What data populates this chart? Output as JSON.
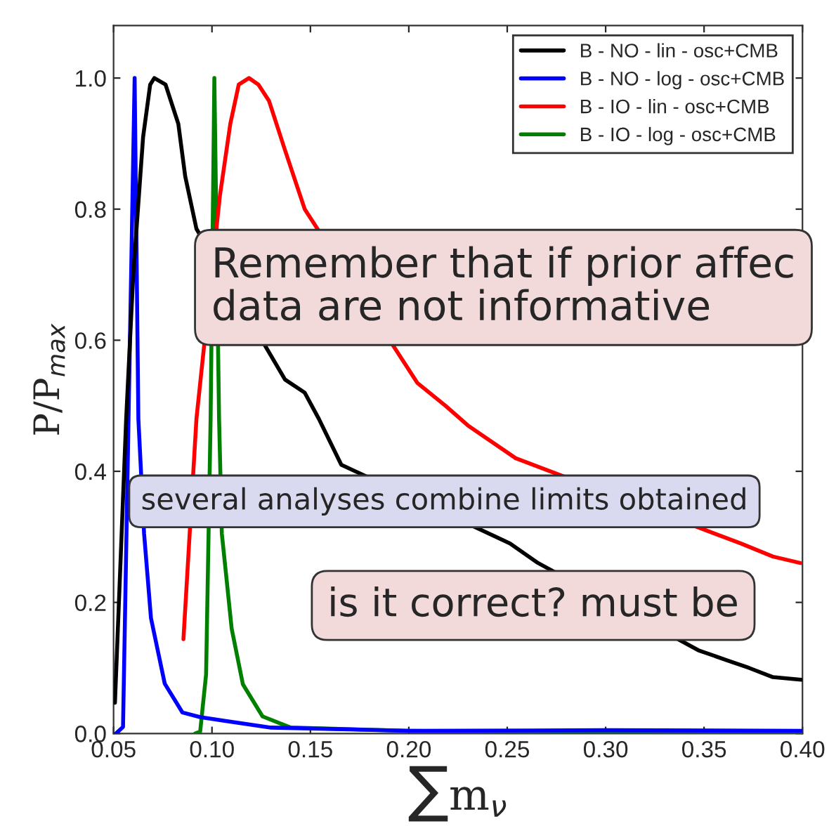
{
  "chart_data": {
    "type": "line",
    "xlabel": "∑m$_{ν}$",
    "ylabel": "P/P$_{max}$",
    "xlim": [
      0.05,
      0.4
    ],
    "ylim": [
      0,
      1.08
    ],
    "xticks": [
      {
        "value": 0.05,
        "label": "0.05"
      },
      {
        "value": 0.1,
        "label": "0.10"
      },
      {
        "value": 0.15,
        "label": "0.15"
      },
      {
        "value": 0.2,
        "label": "0.20"
      },
      {
        "value": 0.25,
        "label": "0.25"
      },
      {
        "value": 0.3,
        "label": "0.30"
      },
      {
        "value": 0.35,
        "label": "0.35"
      },
      {
        "value": 0.4,
        "label": "0.40"
      }
    ],
    "yticks": [
      {
        "value": 0,
        "label": "0.0"
      },
      {
        "value": 0.2,
        "label": "0.2"
      },
      {
        "value": 0.4,
        "label": "0.4"
      },
      {
        "value": 0.6,
        "label": "0.6"
      },
      {
        "value": 0.8,
        "label": "0.8"
      },
      {
        "value": 1.0,
        "label": "1.0"
      }
    ],
    "legend": "top right",
    "grid": false,
    "marker": "none",
    "line_style": "solid",
    "series": [
      {
        "name": "B - NO - lin - osc+CMB",
        "color": "#000000",
        "x": [
          0.0507,
          0.0564,
          0.06,
          0.065,
          0.0686,
          0.0707,
          0.0764,
          0.0829,
          0.0864,
          0.0921,
          0.1371,
          0.1471,
          0.1543,
          0.1657,
          0.2514,
          0.2657,
          0.3471,
          0.3614,
          0.3729,
          0.385,
          0.3993
        ],
        "values": [
          0.047,
          0.48,
          0.7,
          0.91,
          0.99,
          1.0,
          0.99,
          0.93,
          0.85,
          0.77,
          0.54,
          0.52,
          0.48,
          0.41,
          0.29,
          0.26,
          0.127,
          0.112,
          0.1,
          0.086,
          0.082
        ]
      },
      {
        "name": "B - NO - log - osc+CMB",
        "color": "#0000ff",
        "x": [
          0.0512,
          0.0548,
          0.0576,
          0.0607,
          0.0626,
          0.0655,
          0.069,
          0.076,
          0.085,
          0.094,
          0.107,
          0.13,
          0.2,
          0.3,
          0.4
        ],
        "values": [
          0.0,
          0.01,
          0.48,
          1.0,
          0.48,
          0.305,
          0.176,
          0.076,
          0.032,
          0.025,
          0.019,
          0.009,
          0.004,
          0.005,
          0.004
        ]
      },
      {
        "name": "B - IO - lin - osc+CMB",
        "color": "#ff0000",
        "x": [
          0.0855,
          0.0921,
          0.104,
          0.1093,
          0.1136,
          0.1188,
          0.1236,
          0.129,
          0.1371,
          0.1471,
          0.2043,
          0.2186,
          0.23,
          0.2543,
          0.3686,
          0.385,
          0.399
        ],
        "values": [
          0.144,
          0.48,
          0.82,
          0.93,
          0.99,
          1.0,
          0.99,
          0.965,
          0.89,
          0.8,
          0.535,
          0.5,
          0.47,
          0.42,
          0.29,
          0.27,
          0.26
        ]
      },
      {
        "name": "B - IO - log - osc+CMB",
        "color": "#008000",
        "x": [
          0.0914,
          0.094,
          0.097,
          0.0993,
          0.1012,
          0.1036,
          0.105,
          0.11,
          0.1157,
          0.1257,
          0.14,
          0.2,
          0.3,
          0.4
        ],
        "values": [
          0.0,
          0.003,
          0.09,
          0.48,
          1.0,
          0.48,
          0.305,
          0.16,
          0.075,
          0.026,
          0.009,
          0.004,
          0.001,
          0.0
        ]
      }
    ],
    "annotations": [
      "Remember that if prior affec\ndata are not informative",
      "several analyses combine limits obtained",
      "is it correct? must be"
    ]
  }
}
